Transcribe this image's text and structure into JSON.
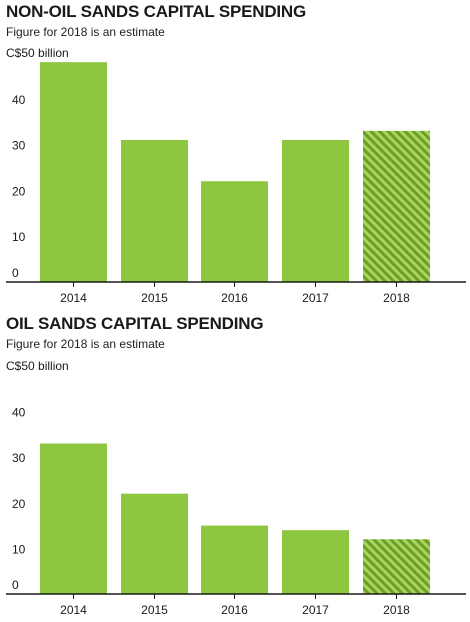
{
  "colors": {
    "bar": "#8dc63f",
    "bar_estimate_stripe_light": "#a6d65b",
    "bar_estimate_stripe_dark": "#6f9d2c",
    "axis": "#1a1a1a",
    "text": "#1a1a1a"
  },
  "chart_data": [
    {
      "type": "bar",
      "title": "NON-OIL SANDS CAPITAL SPENDING",
      "subtitle": "Figure for 2018 is an estimate",
      "ylabel": "C$50 billion",
      "categories": [
        "2014",
        "2015",
        "2016",
        "2017",
        "2018"
      ],
      "values": [
        48,
        31,
        22,
        31,
        33
      ],
      "estimate_flags": [
        false,
        false,
        false,
        false,
        true
      ],
      "ylim": [
        0,
        50
      ],
      "yticks": [
        "0",
        "10",
        "20",
        "30",
        "40"
      ],
      "grid": false
    },
    {
      "type": "bar",
      "title": "OIL SANDS CAPITAL SPENDING",
      "subtitle": "Figure for 2018 is an estimate",
      "ylabel": "C$50 billion",
      "categories": [
        "2014",
        "2015",
        "2016",
        "2017",
        "2018"
      ],
      "values": [
        33,
        22,
        15,
        14,
        12
      ],
      "estimate_flags": [
        false,
        false,
        false,
        false,
        true
      ],
      "ylim": [
        0,
        50
      ],
      "yticks": [
        "0",
        "10",
        "20",
        "30",
        "40"
      ],
      "grid": false
    }
  ]
}
